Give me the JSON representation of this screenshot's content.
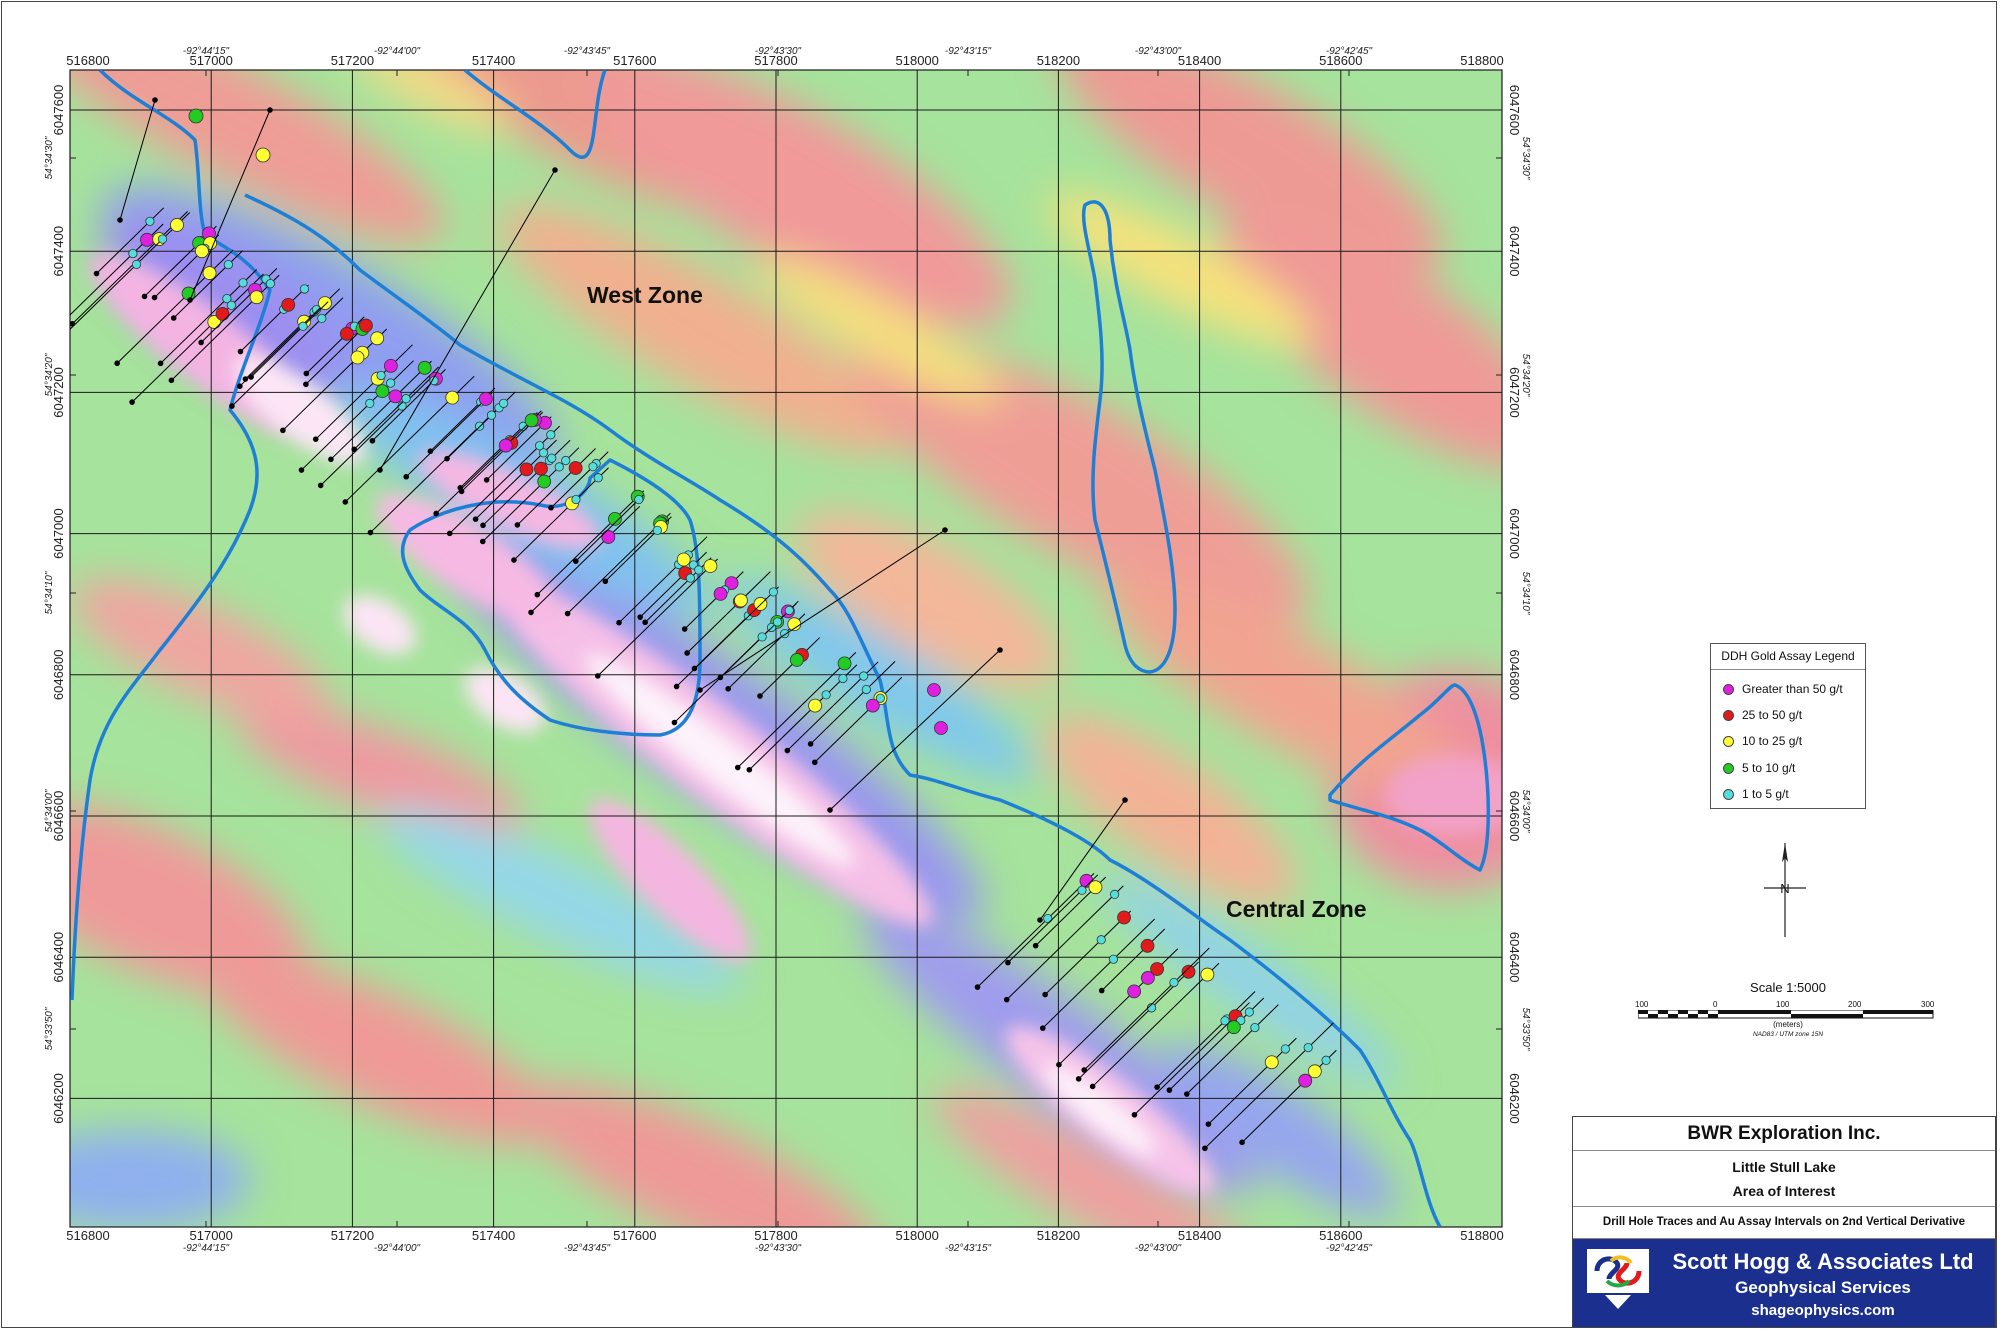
{
  "map": {
    "zone_labels": [
      {
        "name": "west",
        "text": "West Zone"
      },
      {
        "name": "central",
        "text": "Central Zone"
      }
    ],
    "easting_ticks": [
      "516800",
      "517000",
      "517200",
      "517400",
      "517600",
      "517800",
      "518000",
      "518200",
      "518400",
      "518600",
      "518800"
    ],
    "northing_ticks": [
      "6047600",
      "6047400",
      "6047200",
      "6047000",
      "6046800",
      "6046600",
      "6046400",
      "6046200"
    ],
    "longitude_ticks": [
      "-92°44'15\"",
      "-92°44'00\"",
      "-92°43'45\"",
      "-92°43'30\"",
      "-92°43'15\"",
      "-92°43'00\"",
      "-92°42'45\""
    ],
    "latitude_ticks": [
      "54°34'30\"",
      "54°34'20\"",
      "54°34'10\"",
      "54°34'00\"",
      "54°33'50\""
    ],
    "colors": {
      "outline": "#1e7fd6",
      "trace": "#000000",
      "gt50": "#e020e0",
      "g25_50": "#e31a1c",
      "g10_25": "#ffff33",
      "g5_10": "#22cc22",
      "g1_5": "#55dddd"
    }
  },
  "legend": {
    "title": "DDH Gold Assay Legend",
    "items": [
      {
        "label": "Greater than 50 g/t",
        "color": "#e020e0"
      },
      {
        "label": "25 to 50 g/t",
        "color": "#e31a1c"
      },
      {
        "label": "10 to 25 g/t",
        "color": "#ffff33"
      },
      {
        "label": "5 to 10 g/t",
        "color": "#22cc22"
      },
      {
        "label": "1 to 5 g/t",
        "color": "#55dddd"
      }
    ]
  },
  "north_arrow": {
    "label": "N"
  },
  "scale": {
    "title": "Scale 1:5000",
    "numbers": [
      "100",
      "0",
      "100",
      "200",
      "300"
    ],
    "units": "(meters)",
    "datum": "NAD83 / UTM zone 15N"
  },
  "title_block": {
    "company": "BWR Exploration Inc.",
    "project_line1": "Little Stull Lake",
    "project_line2": "Area of Interest",
    "description": "Drill Hole Traces and Au Assay Intervals on 2nd Vertical Derivative",
    "firm_name": "Scott Hogg & Associates Ltd",
    "firm_sub": "Geophysical Services",
    "firm_web": "shageophysics.com"
  }
}
